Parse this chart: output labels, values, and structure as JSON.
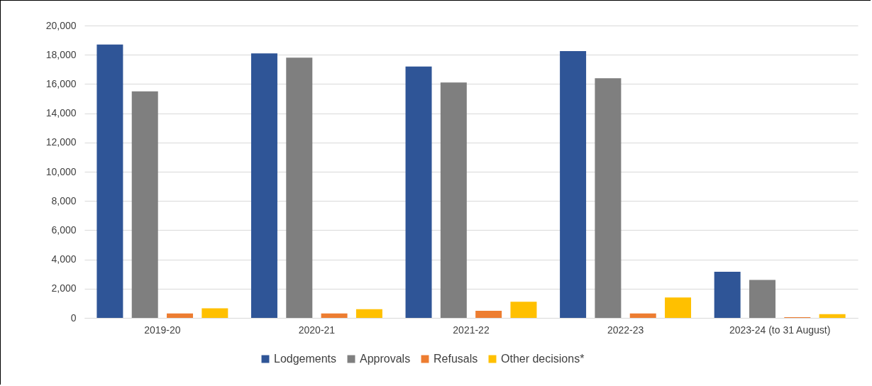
{
  "chart_data": {
    "type": "bar",
    "categories": [
      "2019-20",
      "2020-21",
      "2021-22",
      "2022-23",
      "2023-24 (to 31 August)"
    ],
    "series": [
      {
        "name": "Lodgements",
        "color": "#2f5597",
        "values": [
          18700,
          18100,
          17200,
          18250,
          3150
        ]
      },
      {
        "name": "Approvals",
        "color": "#7f7f7f",
        "values": [
          15500,
          17800,
          16100,
          16400,
          2600
        ]
      },
      {
        "name": "Refusals",
        "color": "#ed7d31",
        "values": [
          300,
          300,
          480,
          300,
          50
        ]
      },
      {
        "name": "Other decisions*",
        "color": "#ffc000",
        "values": [
          650,
          600,
          1100,
          1400,
          250
        ]
      }
    ],
    "ylim": [
      0,
      20000
    ],
    "yticks": [
      0,
      {
        "value": 2000,
        "label": "2,000"
      },
      {
        "value": 4000,
        "label": "4,000"
      },
      {
        "value": 6000,
        "label": "6,000"
      },
      {
        "value": 8000,
        "label": "8,000"
      },
      {
        "value": 10000,
        "label": "10,000"
      },
      {
        "value": 12000,
        "label": "12,000"
      },
      {
        "value": 14000,
        "label": "14,000"
      },
      {
        "value": 16000,
        "label": "16,000"
      },
      {
        "value": 18000,
        "label": "18,000"
      },
      {
        "value": 20000,
        "label": "20,000"
      }
    ],
    "grid": "y",
    "legend": "bottom"
  }
}
